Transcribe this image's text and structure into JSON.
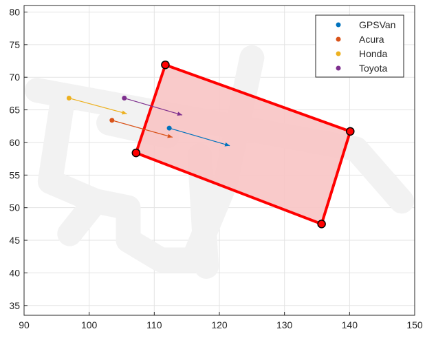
{
  "chart_data": {
    "type": "scatter",
    "title": "",
    "xlabel": "",
    "ylabel": "",
    "xlim": [
      90,
      150
    ],
    "ylim": [
      33.5,
      81
    ],
    "xticks": [
      90,
      100,
      110,
      120,
      130,
      140,
      150
    ],
    "yticks": [
      35,
      40,
      45,
      50,
      55,
      60,
      65,
      70,
      75,
      80
    ],
    "grid": true,
    "legend_position": "top-right",
    "background_track": [
      [
        [
          92,
          68
        ],
        [
          141,
          59
        ],
        [
          148,
          51
        ]
      ],
      [
        [
          96,
          67
        ],
        [
          94,
          54
        ],
        [
          101,
          51
        ],
        [
          97,
          46
        ]
      ],
      [
        [
          101,
          51
        ],
        [
          106,
          50
        ],
        [
          106,
          45
        ],
        [
          111,
          42
        ],
        [
          116,
          42
        ],
        [
          121,
          54
        ],
        [
          125,
          73
        ]
      ],
      [
        [
          117,
          58
        ],
        [
          118,
          41
        ]
      ],
      [
        [
          103,
          63
        ],
        [
          112,
          61
        ]
      ]
    ],
    "series": [
      {
        "name": "GPSVan",
        "color": "#0072BD",
        "point": [
          112.3,
          62.2
        ],
        "arrow_to": [
          121.6,
          59.5
        ]
      },
      {
        "name": "Acura",
        "color": "#D95319",
        "point": [
          103.5,
          63.4
        ],
        "arrow_to": [
          112.8,
          60.8
        ]
      },
      {
        "name": "Honda",
        "color": "#EDB120",
        "point": [
          96.9,
          66.8
        ],
        "arrow_to": [
          105.8,
          64.4
        ]
      },
      {
        "name": "Toyota",
        "color": "#7E2F8E",
        "point": [
          105.4,
          66.8
        ],
        "arrow_to": [
          114.3,
          64.2
        ]
      }
    ],
    "polygon": {
      "stroke": "#FF0000",
      "fill": "#F8C4C4",
      "vertices": [
        [
          111.7,
          71.9
        ],
        [
          140.1,
          61.7
        ],
        [
          135.7,
          47.5
        ],
        [
          107.2,
          58.4
        ]
      ]
    }
  }
}
